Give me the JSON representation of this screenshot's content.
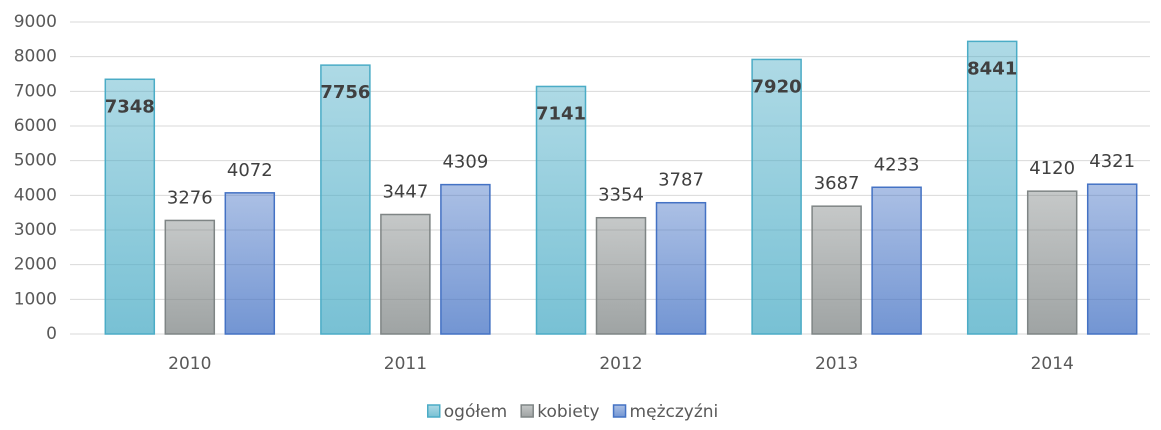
{
  "chart_data": {
    "type": "bar",
    "categories": [
      "2010",
      "2011",
      "2012",
      "2013",
      "2014"
    ],
    "series": [
      {
        "name": "ogółem",
        "color": "#4bacc6",
        "values": [
          7348,
          7756,
          7141,
          7920,
          8441
        ]
      },
      {
        "name": "kobiety",
        "color": "#7f8585",
        "values": [
          3276,
          3447,
          3354,
          3687,
          4120
        ]
      },
      {
        "name": "mężczyźni",
        "color": "#4472c4",
        "values": [
          4072,
          4309,
          3787,
          4233,
          4321
        ]
      }
    ],
    "ylim": [
      0,
      9000
    ],
    "yticks": [
      0,
      1000,
      2000,
      3000,
      4000,
      5000,
      6000,
      7000,
      8000,
      9000
    ],
    "grid": true,
    "legend": "bottom"
  }
}
